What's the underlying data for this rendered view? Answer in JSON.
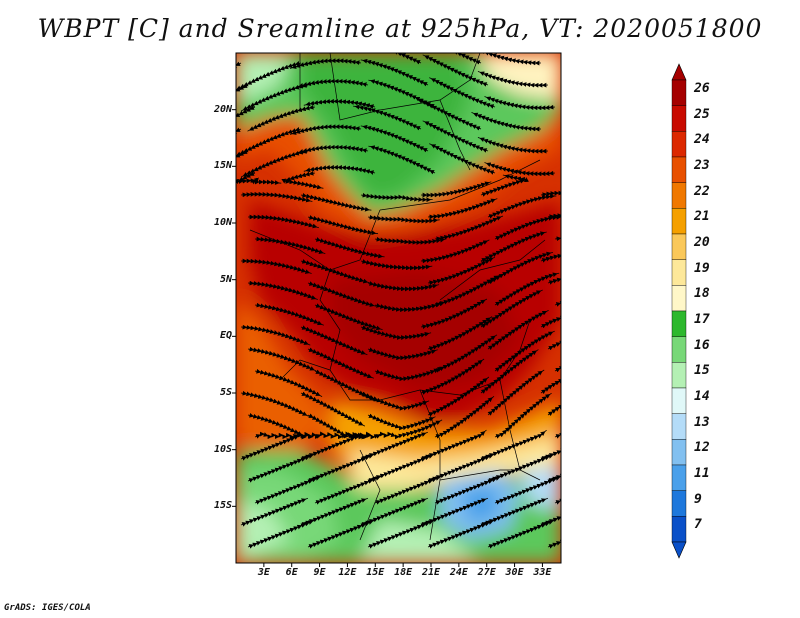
{
  "title": "WBPT [C] and Sreamline at 925hPa, VT: 2020051800",
  "credit": "GrADS: IGES/COLA",
  "map": {
    "lat_labels": [
      "20N",
      "15N",
      "10N",
      "5N",
      "EQ",
      "5S",
      "10S",
      "15S"
    ],
    "lon_labels": [
      "3E",
      "6E",
      "9E",
      "12E",
      "15E",
      "18E",
      "21E",
      "24E",
      "27E",
      "30E",
      "33E"
    ],
    "lat_range": [
      -20,
      25
    ],
    "lon_range": [
      0,
      35
    ],
    "projection": "latlon"
  },
  "colorbar": {
    "labels": [
      "26",
      "25",
      "24",
      "23",
      "22",
      "21",
      "20",
      "19",
      "18",
      "17",
      "16",
      "15",
      "14",
      "13",
      "12",
      "11",
      "9",
      "7"
    ],
    "colors": [
      "#a50000",
      "#c80a00",
      "#dc2800",
      "#e85000",
      "#f07800",
      "#f5a000",
      "#fac85a",
      "#fde89a",
      "#fff7c8",
      "#2db82d",
      "#78d878",
      "#b4f0b4",
      "#e0f8f8",
      "#b4dcf8",
      "#82c0f0",
      "#4aa0ea",
      "#1e78dc",
      "#0a50c8"
    ],
    "extend": "both"
  }
}
